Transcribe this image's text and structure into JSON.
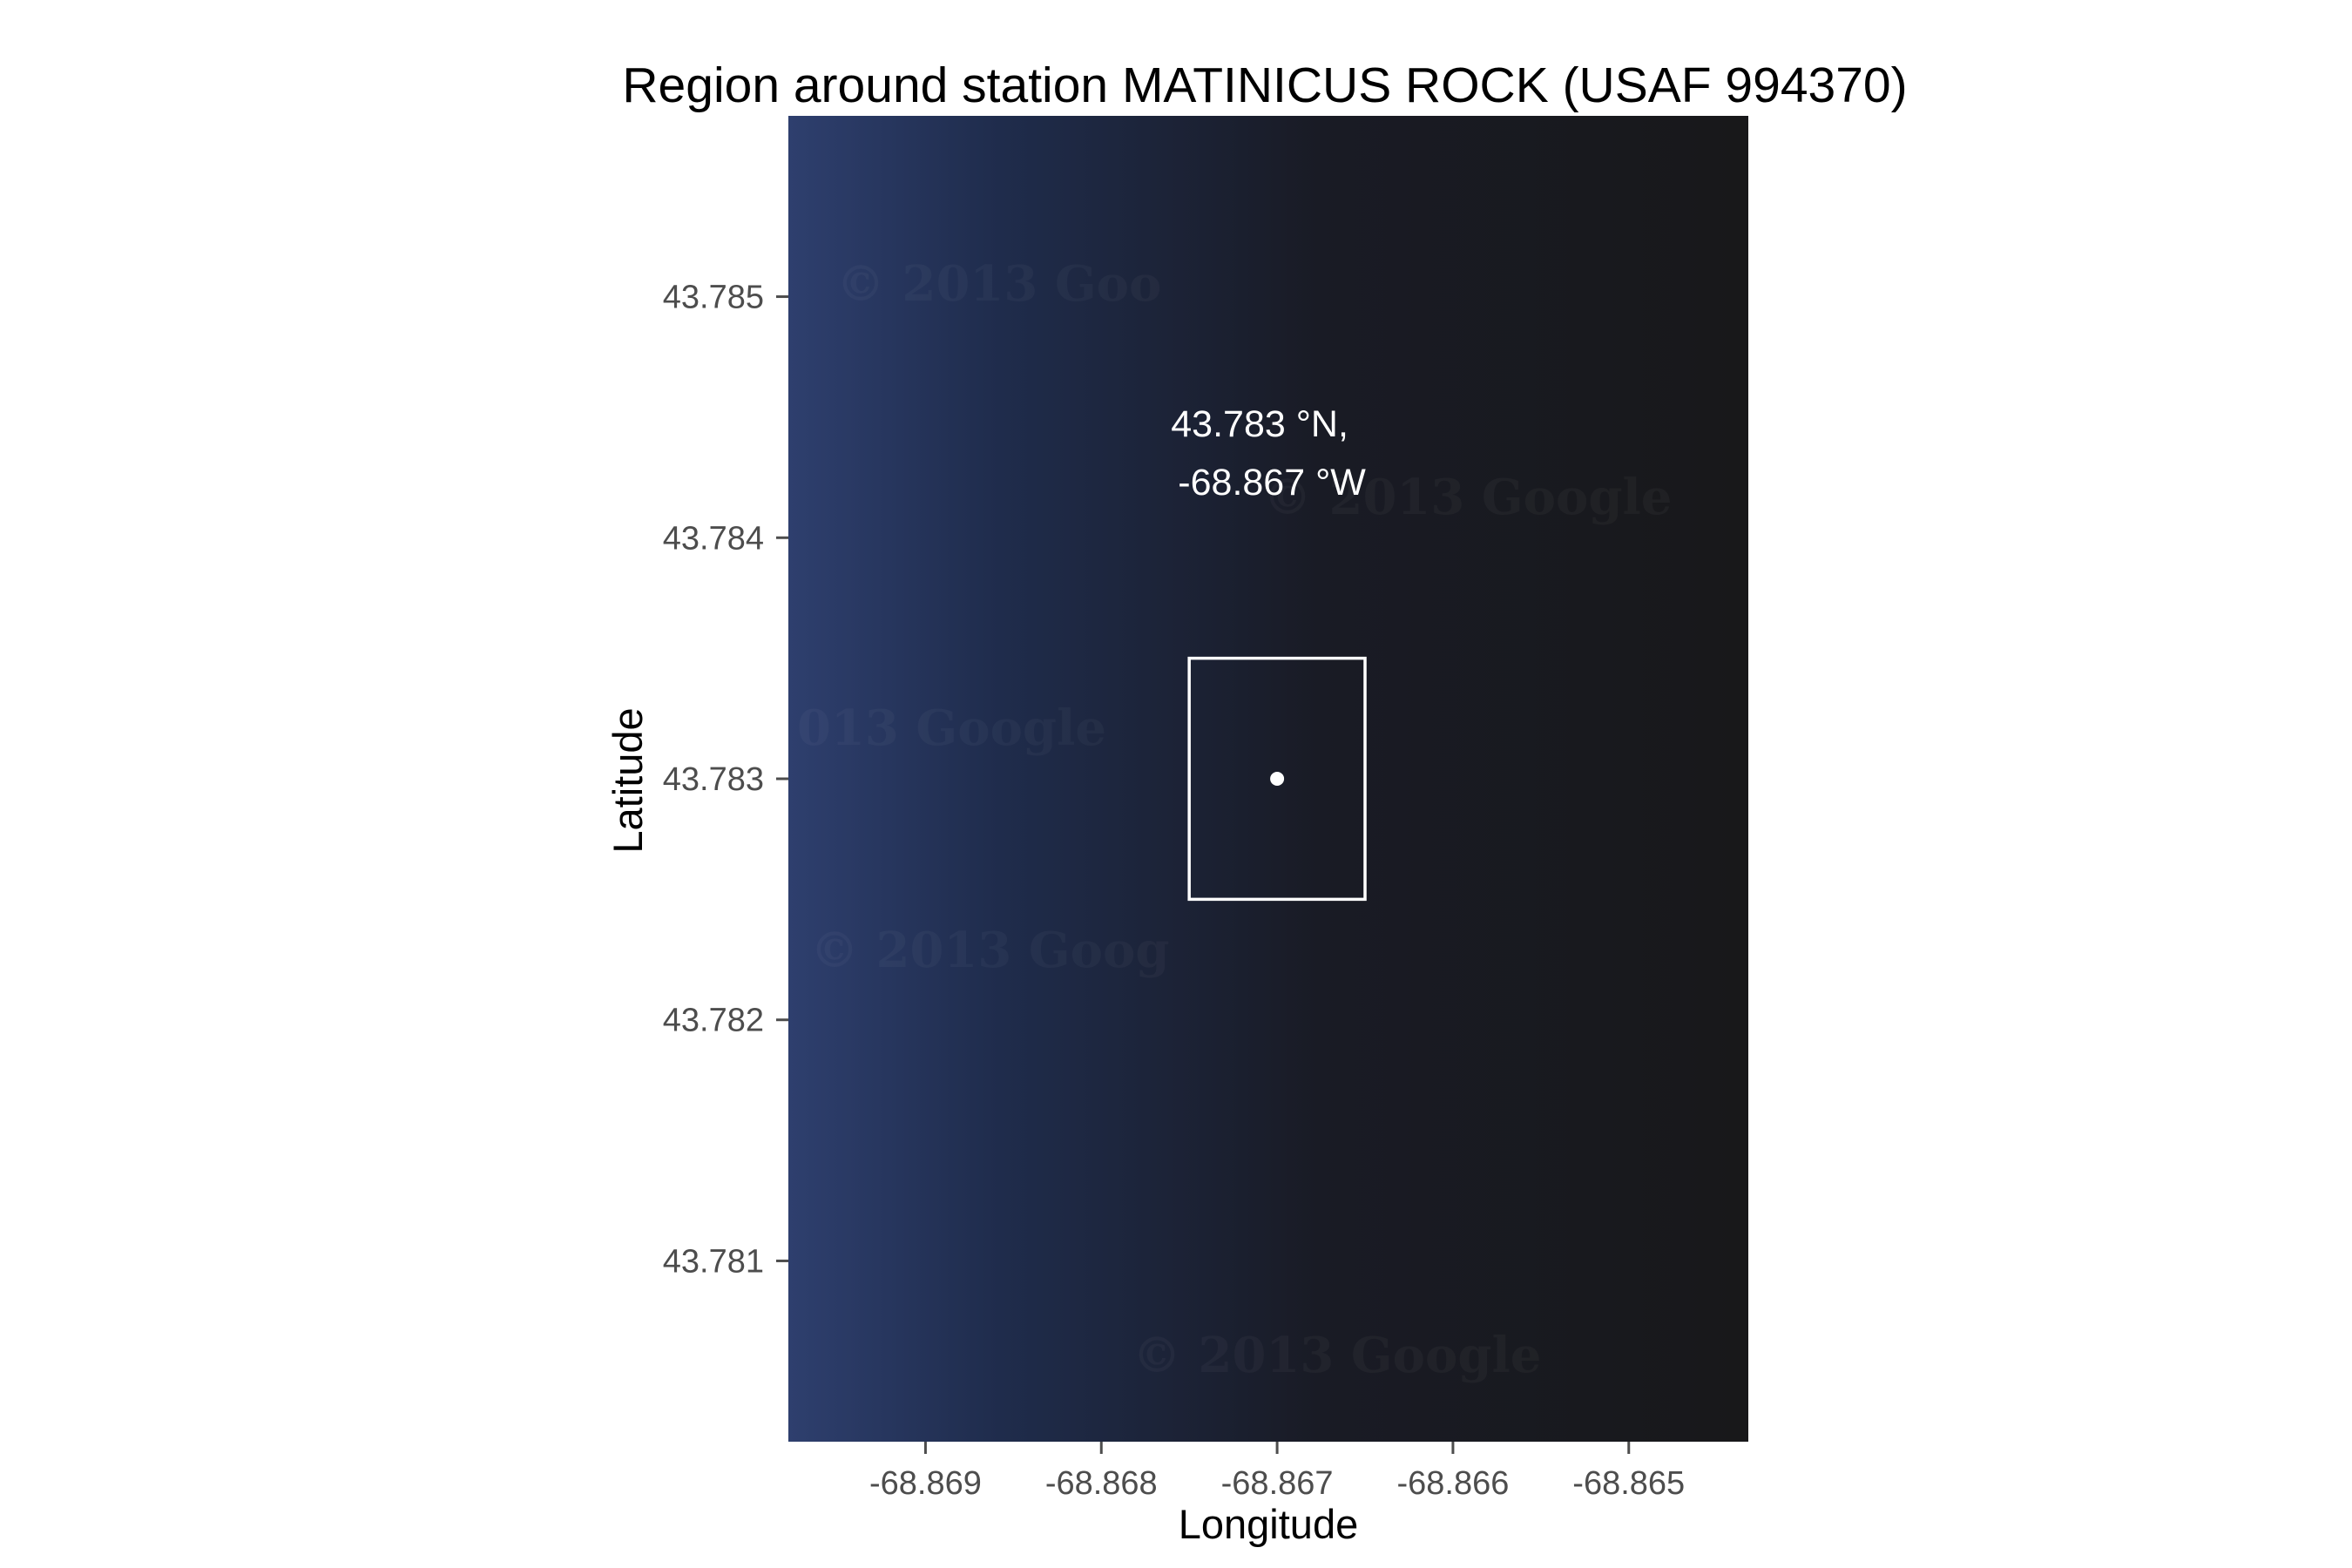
{
  "figure": {
    "title": "Region around station MATINICUS ROCK (USAF 994370)",
    "xlabel": "Longitude",
    "ylabel": "Latitude"
  },
  "map": {
    "background_gradient": [
      "#2e3f6e",
      "#1f2c4c",
      "#191b25",
      "#18181a"
    ],
    "watermarks": [
      "© 2013 Goo",
      "© 2013 Google",
      "013 Google",
      "© 2013 Goog",
      "© 2013 Google"
    ],
    "box_color": "#ffffff",
    "point_color": "#ffffff"
  },
  "chart_data": {
    "type": "map",
    "title": "Region around station MATINICUS ROCK (USAF 994370)",
    "xlabel": "Longitude",
    "ylabel": "Latitude",
    "xlim": [
      -68.86978,
      -68.86432
    ],
    "ylim": [
      43.78025,
      43.78575
    ],
    "x_ticks": [
      -68.869,
      -68.868,
      -68.867,
      -68.866,
      -68.865
    ],
    "x_tick_labels": [
      "-68.869",
      "-68.868",
      "-68.867",
      "-68.866",
      "-68.865"
    ],
    "y_ticks": [
      43.781,
      43.782,
      43.783,
      43.784,
      43.785
    ],
    "y_tick_labels": [
      "43.781",
      "43.782",
      "43.783",
      "43.784",
      "43.785"
    ],
    "station": {
      "name": "MATINICUS ROCK",
      "usaf": "994370",
      "lat": 43.783,
      "lon": -68.867
    },
    "station_box": {
      "lon_min": -68.8675,
      "lon_max": -68.8665,
      "lat_min": 43.7825,
      "lat_max": 43.7835
    },
    "annotation": {
      "lines": [
        "43.783 °N,",
        "-68.867 °W"
      ],
      "lon": -68.867,
      "lat": 43.78425
    },
    "grid": false,
    "legend": "none"
  }
}
